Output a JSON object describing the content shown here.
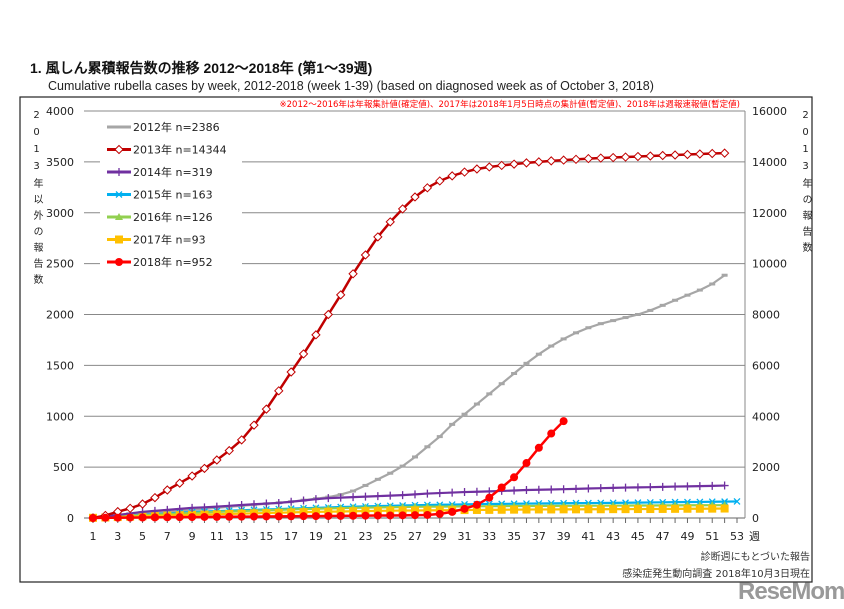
{
  "title": "1. 風しん累積報告数の推移  2012～2018年 (第1～39週)",
  "subtitle": "Cumulative rubella cases by week, 2012-2018 (week 1-39)  (based on diagnosed week as of October 3, 2018)",
  "note": "※2012～2016年は年報集計値(確定値)、2017年は2018年1月5日時点の集計値(暫定値)、2018年は週報速報値(暫定値)",
  "footer": [
    "診断週にもとづいた報告",
    "感染症発生動向調査 2018年10月3日現在"
  ],
  "logo": "ReseMom",
  "chart_data": {
    "type": "line",
    "title": "Cumulative rubella cases by week, 2012-2018",
    "xlabel": "週",
    "ylabel": "2013年以外の報告数",
    "y2label": "2013年の報告数",
    "xlim": [
      1,
      53
    ],
    "ylim": [
      0,
      4000
    ],
    "y2lim": [
      0,
      16000
    ],
    "xticks": [
      "1",
      "3",
      "5",
      "7",
      "9",
      "11",
      "13",
      "15",
      "17",
      "19",
      "21",
      "23",
      "25",
      "27",
      "29",
      "31",
      "33",
      "35",
      "37",
      "39",
      "41",
      "43",
      "45",
      "47",
      "49",
      "51",
      "53"
    ],
    "yticks": [
      "0",
      "500",
      "1000",
      "1500",
      "2000",
      "2500",
      "3000",
      "3500",
      "4000"
    ],
    "y2ticks": [
      "0",
      "2000",
      "4000",
      "6000",
      "8000",
      "10000",
      "12000",
      "14000",
      "16000"
    ],
    "grid": true,
    "legend_position": "top-left",
    "series": [
      {
        "name": "2012年 n=2386",
        "color": "#a6a6a6",
        "marker": "dash",
        "axis": "left",
        "values": [
          5,
          10,
          20,
          30,
          40,
          50,
          60,
          70,
          80,
          90,
          100,
          110,
          120,
          130,
          140,
          150,
          160,
          175,
          190,
          205,
          230,
          265,
          320,
          380,
          440,
          510,
          600,
          700,
          800,
          920,
          1020,
          1120,
          1220,
          1320,
          1420,
          1520,
          1610,
          1690,
          1760,
          1820,
          1870,
          1910,
          1940,
          1970,
          2000,
          2040,
          2090,
          2140,
          2190,
          2240,
          2300,
          2386
        ]
      },
      {
        "name": "2013年 n=14344",
        "color": "#c00000",
        "marker": "diamond",
        "axis": "right",
        "values": [
          0,
          100,
          250,
          380,
          550,
          800,
          1100,
          1370,
          1650,
          1950,
          2280,
          2650,
          3070,
          3650,
          4280,
          5000,
          5740,
          6450,
          7200,
          8000,
          8770,
          9600,
          10340,
          11050,
          11640,
          12150,
          12620,
          12980,
          13250,
          13450,
          13600,
          13720,
          13800,
          13860,
          13910,
          13960,
          14000,
          14040,
          14070,
          14100,
          14130,
          14150,
          14170,
          14190,
          14210,
          14230,
          14250,
          14270,
          14290,
          14310,
          14330,
          14344
        ]
      },
      {
        "name": "2014年 n=319",
        "color": "#7030a0",
        "marker": "plus",
        "axis": "left",
        "values": [
          5,
          15,
          30,
          45,
          60,
          70,
          80,
          90,
          100,
          105,
          112,
          120,
          128,
          135,
          142,
          148,
          160,
          172,
          185,
          195,
          200,
          205,
          210,
          215,
          220,
          225,
          232,
          240,
          245,
          250,
          255,
          258,
          262,
          266,
          270,
          275,
          278,
          280,
          283,
          286,
          290,
          293,
          296,
          299,
          301,
          303,
          306,
          309,
          311,
          313,
          316,
          319
        ]
      },
      {
        "name": "2015年 n=163",
        "color": "#00b0f0",
        "marker": "x",
        "axis": "left",
        "values": [
          3,
          8,
          15,
          22,
          30,
          38,
          45,
          52,
          58,
          64,
          68,
          72,
          76,
          80,
          84,
          88,
          92,
          96,
          100,
          104,
          108,
          111,
          114,
          117,
          120,
          123,
          126,
          128,
          130,
          132,
          134,
          136,
          138,
          139,
          140,
          142,
          143,
          144,
          145,
          146,
          147,
          148,
          149,
          150,
          151,
          153,
          154,
          156,
          157,
          158,
          160,
          161,
          163
        ]
      },
      {
        "name": "2016年 n=126",
        "color": "#92d050",
        "marker": "triangle",
        "axis": "left",
        "values": [
          3,
          8,
          14,
          20,
          26,
          32,
          38,
          44,
          50,
          55,
          60,
          64,
          68,
          72,
          76,
          80,
          84,
          88,
          91,
          94,
          97,
          100,
          102,
          104,
          106,
          108,
          110,
          111,
          112,
          113,
          114,
          115,
          116,
          117,
          118,
          118,
          119,
          119,
          120,
          120,
          121,
          121,
          122,
          122,
          123,
          123,
          124,
          124,
          125,
          125,
          126,
          126
        ]
      },
      {
        "name": "2017年 n=93",
        "color": "#ffc000",
        "marker": "square",
        "axis": "left",
        "values": [
          2,
          5,
          9,
          13,
          17,
          21,
          25,
          28,
          31,
          34,
          37,
          40,
          43,
          46,
          49,
          52,
          55,
          58,
          60,
          62,
          64,
          66,
          68,
          70,
          72,
          73,
          74,
          75,
          76,
          77,
          78,
          79,
          80,
          81,
          82,
          83,
          84,
          84,
          85,
          85,
          86,
          86,
          87,
          87,
          88,
          88,
          89,
          90,
          91,
          91,
          92,
          93
        ]
      },
      {
        "name": "2018年 n=952",
        "color": "#ff0000",
        "marker": "circle",
        "axis": "left",
        "values": [
          0,
          2,
          3,
          4,
          5,
          6,
          7,
          8,
          9,
          10,
          11,
          12,
          13,
          14,
          15,
          16,
          17,
          18,
          19,
          20,
          21,
          22,
          23,
          24,
          25,
          26,
          28,
          30,
          40,
          60,
          90,
          130,
          200,
          300,
          400,
          540,
          690,
          830,
          952
        ]
      }
    ]
  }
}
